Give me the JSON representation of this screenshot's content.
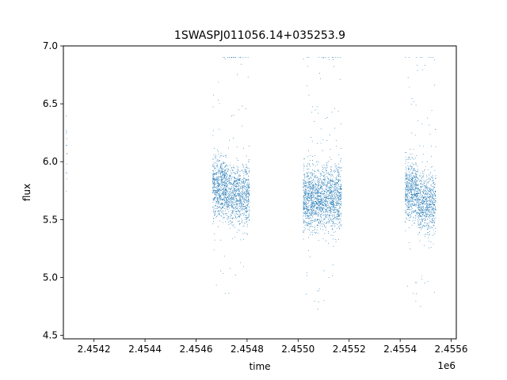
{
  "chart_data": {
    "type": "scatter",
    "title": "1SWASPJ011056.14+035253.9",
    "xlabel": "time",
    "ylabel": "flux",
    "x_offset_label": "1e6",
    "xlim": [
      2454080,
      2455620
    ],
    "ylim": [
      4.47,
      7.0
    ],
    "x_ticks": [
      2454200,
      2454400,
      2454600,
      2454800,
      2455000,
      2455200,
      2455400,
      2455600
    ],
    "x_tick_labels": [
      "2.4542",
      "2.4544",
      "2.4546",
      "2.4548",
      "2.4550",
      "2.4552",
      "2.4554",
      "2.4556"
    ],
    "y_ticks": [
      4.5,
      5.0,
      5.5,
      6.0,
      6.5,
      7.0
    ],
    "y_tick_labels": [
      "4.5",
      "5.0",
      "5.5",
      "6.0",
      "6.5",
      "7.0"
    ],
    "grid": false,
    "marker_color": "#1f77b4",
    "series": [
      {
        "segments": [
          {
            "x_start": 2454090,
            "x_end": 2454095,
            "median": 6.1,
            "spread": 0.25,
            "n": 14
          },
          {
            "x_start": 2454665,
            "x_end": 2454720,
            "median": 5.78,
            "spread": 0.22,
            "n": 700
          },
          {
            "x_start": 2454720,
            "x_end": 2454810,
            "median": 5.72,
            "spread": 0.22,
            "n": 900
          },
          {
            "x_start": 2455020,
            "x_end": 2455090,
            "median": 5.68,
            "spread": 0.23,
            "n": 900
          },
          {
            "x_start": 2455090,
            "x_end": 2455170,
            "median": 5.7,
            "spread": 0.24,
            "n": 900
          },
          {
            "x_start": 2455420,
            "x_end": 2455470,
            "median": 5.75,
            "spread": 0.22,
            "n": 600
          },
          {
            "x_start": 2455470,
            "x_end": 2455540,
            "median": 5.65,
            "spread": 0.22,
            "n": 700
          }
        ]
      }
    ]
  }
}
